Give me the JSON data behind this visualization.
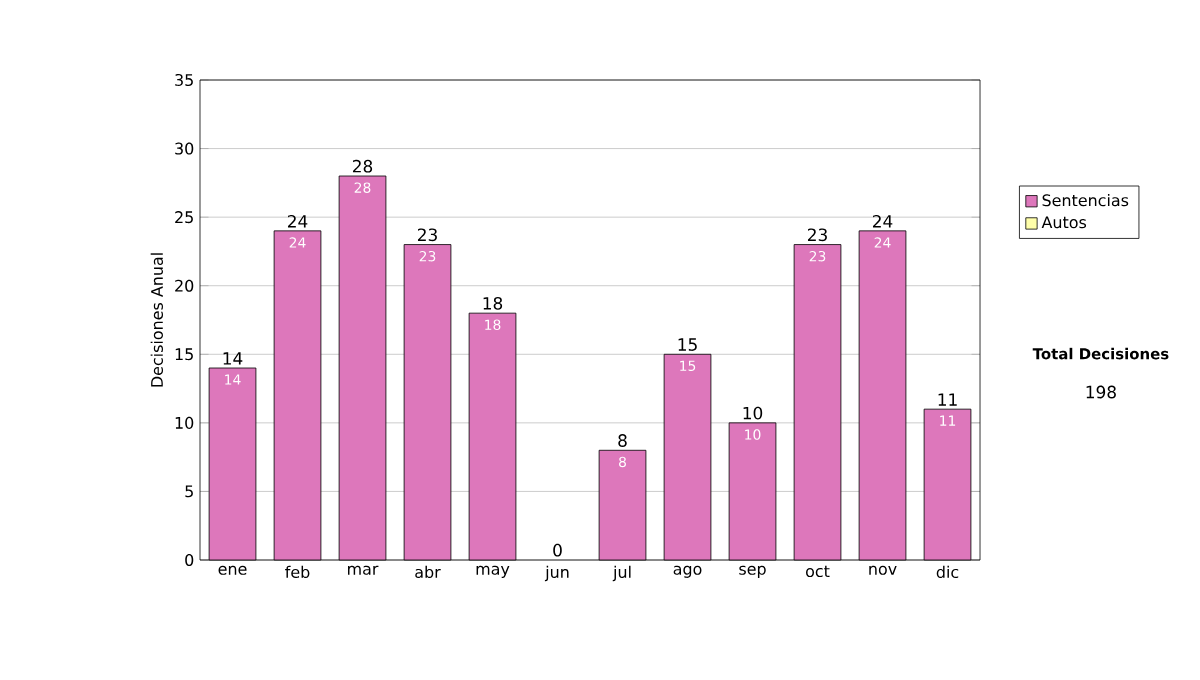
{
  "chart_data": {
    "type": "bar",
    "stacked": true,
    "ylabel": "Decisiones Anual",
    "categories": [
      "ene",
      "feb",
      "mar",
      "abr",
      "may",
      "jun",
      "jul",
      "ago",
      "sep",
      "oct",
      "nov",
      "dic"
    ],
    "series": [
      {
        "name": "Sentencias",
        "color": "#dd77bb",
        "values": [
          14,
          24,
          28,
          23,
          18,
          0,
          8,
          15,
          10,
          23,
          24,
          11
        ],
        "value_labels": [
          "14",
          "24",
          "28",
          "23",
          "18",
          null,
          "8",
          "15",
          "10",
          "23",
          "24",
          "11"
        ]
      },
      {
        "name": "Autos",
        "color": "#ffffaa",
        "values": [
          0,
          0,
          0,
          0,
          0,
          0,
          0,
          0,
          0,
          0,
          0,
          0
        ]
      }
    ],
    "totals": [
      "14",
      "24",
      "28",
      "23",
      "18",
      "0",
      "8",
      "15",
      "10",
      "23",
      "24",
      "11"
    ],
    "ylim": [
      0,
      35
    ],
    "yticks": [
      0,
      5,
      10,
      15,
      20,
      25,
      30,
      35
    ],
    "grid": "y",
    "legend": "right",
    "annotations": [
      "Total Decisiones",
      "198"
    ]
  }
}
